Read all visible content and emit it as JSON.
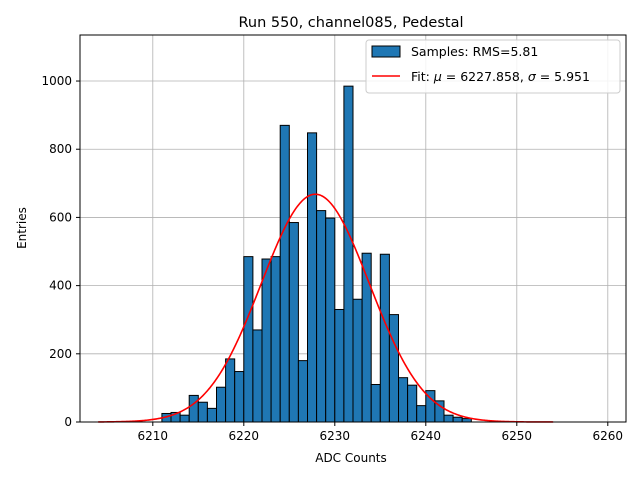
{
  "chart_data": {
    "type": "bar",
    "title": "Run 550, channel085, Pedestal",
    "xlabel": "ADC Counts",
    "ylabel": "Entries",
    "xlim": [
      6202,
      6262
    ],
    "ylim": [
      0,
      1135
    ],
    "xticks": [
      6210,
      6220,
      6230,
      6240,
      6250,
      6260
    ],
    "yticks": [
      0,
      200,
      400,
      600,
      800,
      1000
    ],
    "grid": true,
    "legend": {
      "position": "top-right",
      "entries": [
        {
          "label": "Samples: RMS=5.81",
          "kind": "patch",
          "color": "#1f77b4"
        },
        {
          "label_parts": [
            "Fit: ",
            "μ",
            " = 6227.858, ",
            "σ",
            " = 5.951"
          ],
          "kind": "line",
          "color": "#ff0000"
        }
      ]
    },
    "histogram": {
      "name": "Samples",
      "bin_width": 1,
      "bin_starts": [
        6211,
        6212,
        6213,
        6214,
        6215,
        6216,
        6217,
        6218,
        6219,
        6220,
        6221,
        6222,
        6223,
        6224,
        6225,
        6226,
        6227,
        6228,
        6229,
        6230,
        6231,
        6232,
        6233,
        6234,
        6235,
        6236,
        6237,
        6238,
        6239,
        6240,
        6241,
        6242,
        6243,
        6244
      ],
      "counts": [
        25,
        28,
        20,
        78,
        58,
        40,
        102,
        185,
        148,
        485,
        270,
        478,
        485,
        870,
        585,
        180,
        848,
        620,
        598,
        330,
        985,
        360,
        495,
        110,
        492,
        315,
        130,
        108,
        48,
        92,
        62,
        20,
        14,
        10
      ],
      "color": "#1f77b4",
      "edgecolor": "#000000"
    },
    "fit": {
      "name": "Fit",
      "mu": 6227.858,
      "sigma": 5.951,
      "amplitude": 668,
      "x_range": [
        6204,
        6254
      ],
      "color": "#ff0000"
    }
  }
}
